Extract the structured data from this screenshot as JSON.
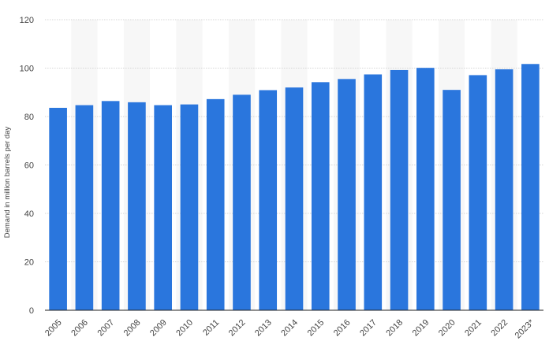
{
  "chart_data": {
    "type": "bar",
    "title": "",
    "xlabel": "",
    "ylabel": "Demand in million barrels per day",
    "ylim": [
      0,
      120
    ],
    "yticks": [
      0,
      20,
      40,
      60,
      80,
      100,
      120
    ],
    "grid": "horizontal dashed",
    "legend": "none",
    "bar_color": "#2a76dd",
    "band_color": "#f7f7f7",
    "categories": [
      "2005",
      "2006",
      "2007",
      "2008",
      "2009",
      "2010",
      "2011",
      "2012",
      "2013",
      "2014",
      "2015",
      "2016",
      "2017",
      "2018",
      "2019",
      "2020",
      "2021",
      "2022",
      "2023*"
    ],
    "values": [
      83.6,
      84.7,
      86.4,
      85.9,
      84.7,
      85.0,
      87.2,
      89.0,
      90.9,
      92.0,
      94.2,
      95.5,
      97.4,
      99.2,
      100.1,
      91.0,
      97.1,
      99.5,
      101.7
    ]
  }
}
